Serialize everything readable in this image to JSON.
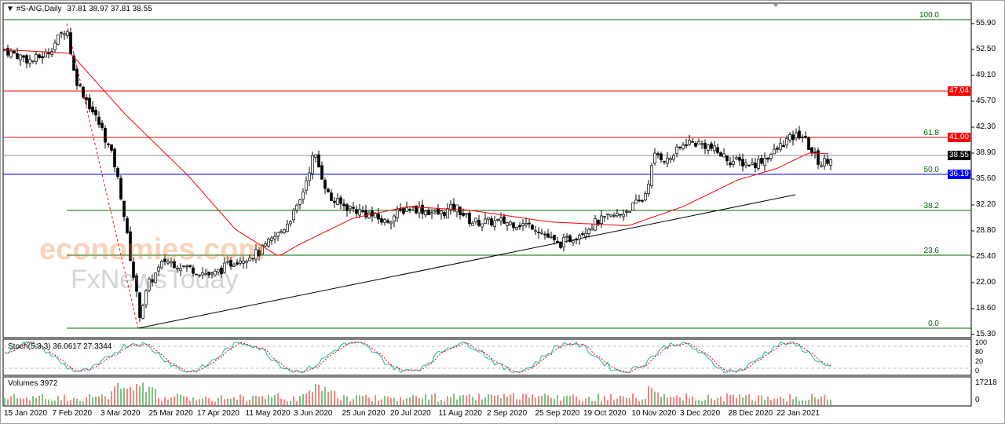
{
  "header": {
    "symbol": "#S-AIG,Daily",
    "ohlc": "37.81 38.97 37.81 38.55"
  },
  "price_axis": [
    "55.90",
    "52.50",
    "49.10",
    "45.70",
    "42.30",
    "38.90",
    "35.60",
    "32.20",
    "28.80",
    "25.40",
    "22.00",
    "18.60",
    "15.30"
  ],
  "price_tags": [
    {
      "value": "47.04",
      "color": "#ff0000"
    },
    {
      "value": "41.00",
      "color": "#ff0000"
    },
    {
      "value": "38.55",
      "color": "#000000"
    },
    {
      "value": "36.19",
      "color": "#0000ff"
    }
  ],
  "fib_levels": [
    "100.0",
    "61.8",
    "50.0",
    "38.2",
    "23.6",
    "0.0"
  ],
  "stoch": {
    "label": "Stoch(5,3,3) 36.0617 27.3344",
    "axis": [
      "100",
      "80",
      "20",
      "0"
    ]
  },
  "volumes": {
    "label": "Volumes 3972",
    "axis": [
      "17218",
      "0"
    ]
  },
  "dates": [
    "15 Jan 2020",
    "7 Feb 2020",
    "3 Mar 2020",
    "25 Mar 2020",
    "17 Apr 2020",
    "11 May 2020",
    "3 Jun 2020",
    "25 Jun 2020",
    "20 Jul 2020",
    "11 Aug 2020",
    "2 Sep 2020",
    "25 Sep 2020",
    "19 Oct 2020",
    "10 Nov 2020",
    "3 Dec 2020",
    "28 Dec 2020",
    "22 Jan 2021"
  ],
  "watermark": {
    "line1": "economies.com",
    "line2": "FxNewsToday"
  }
}
